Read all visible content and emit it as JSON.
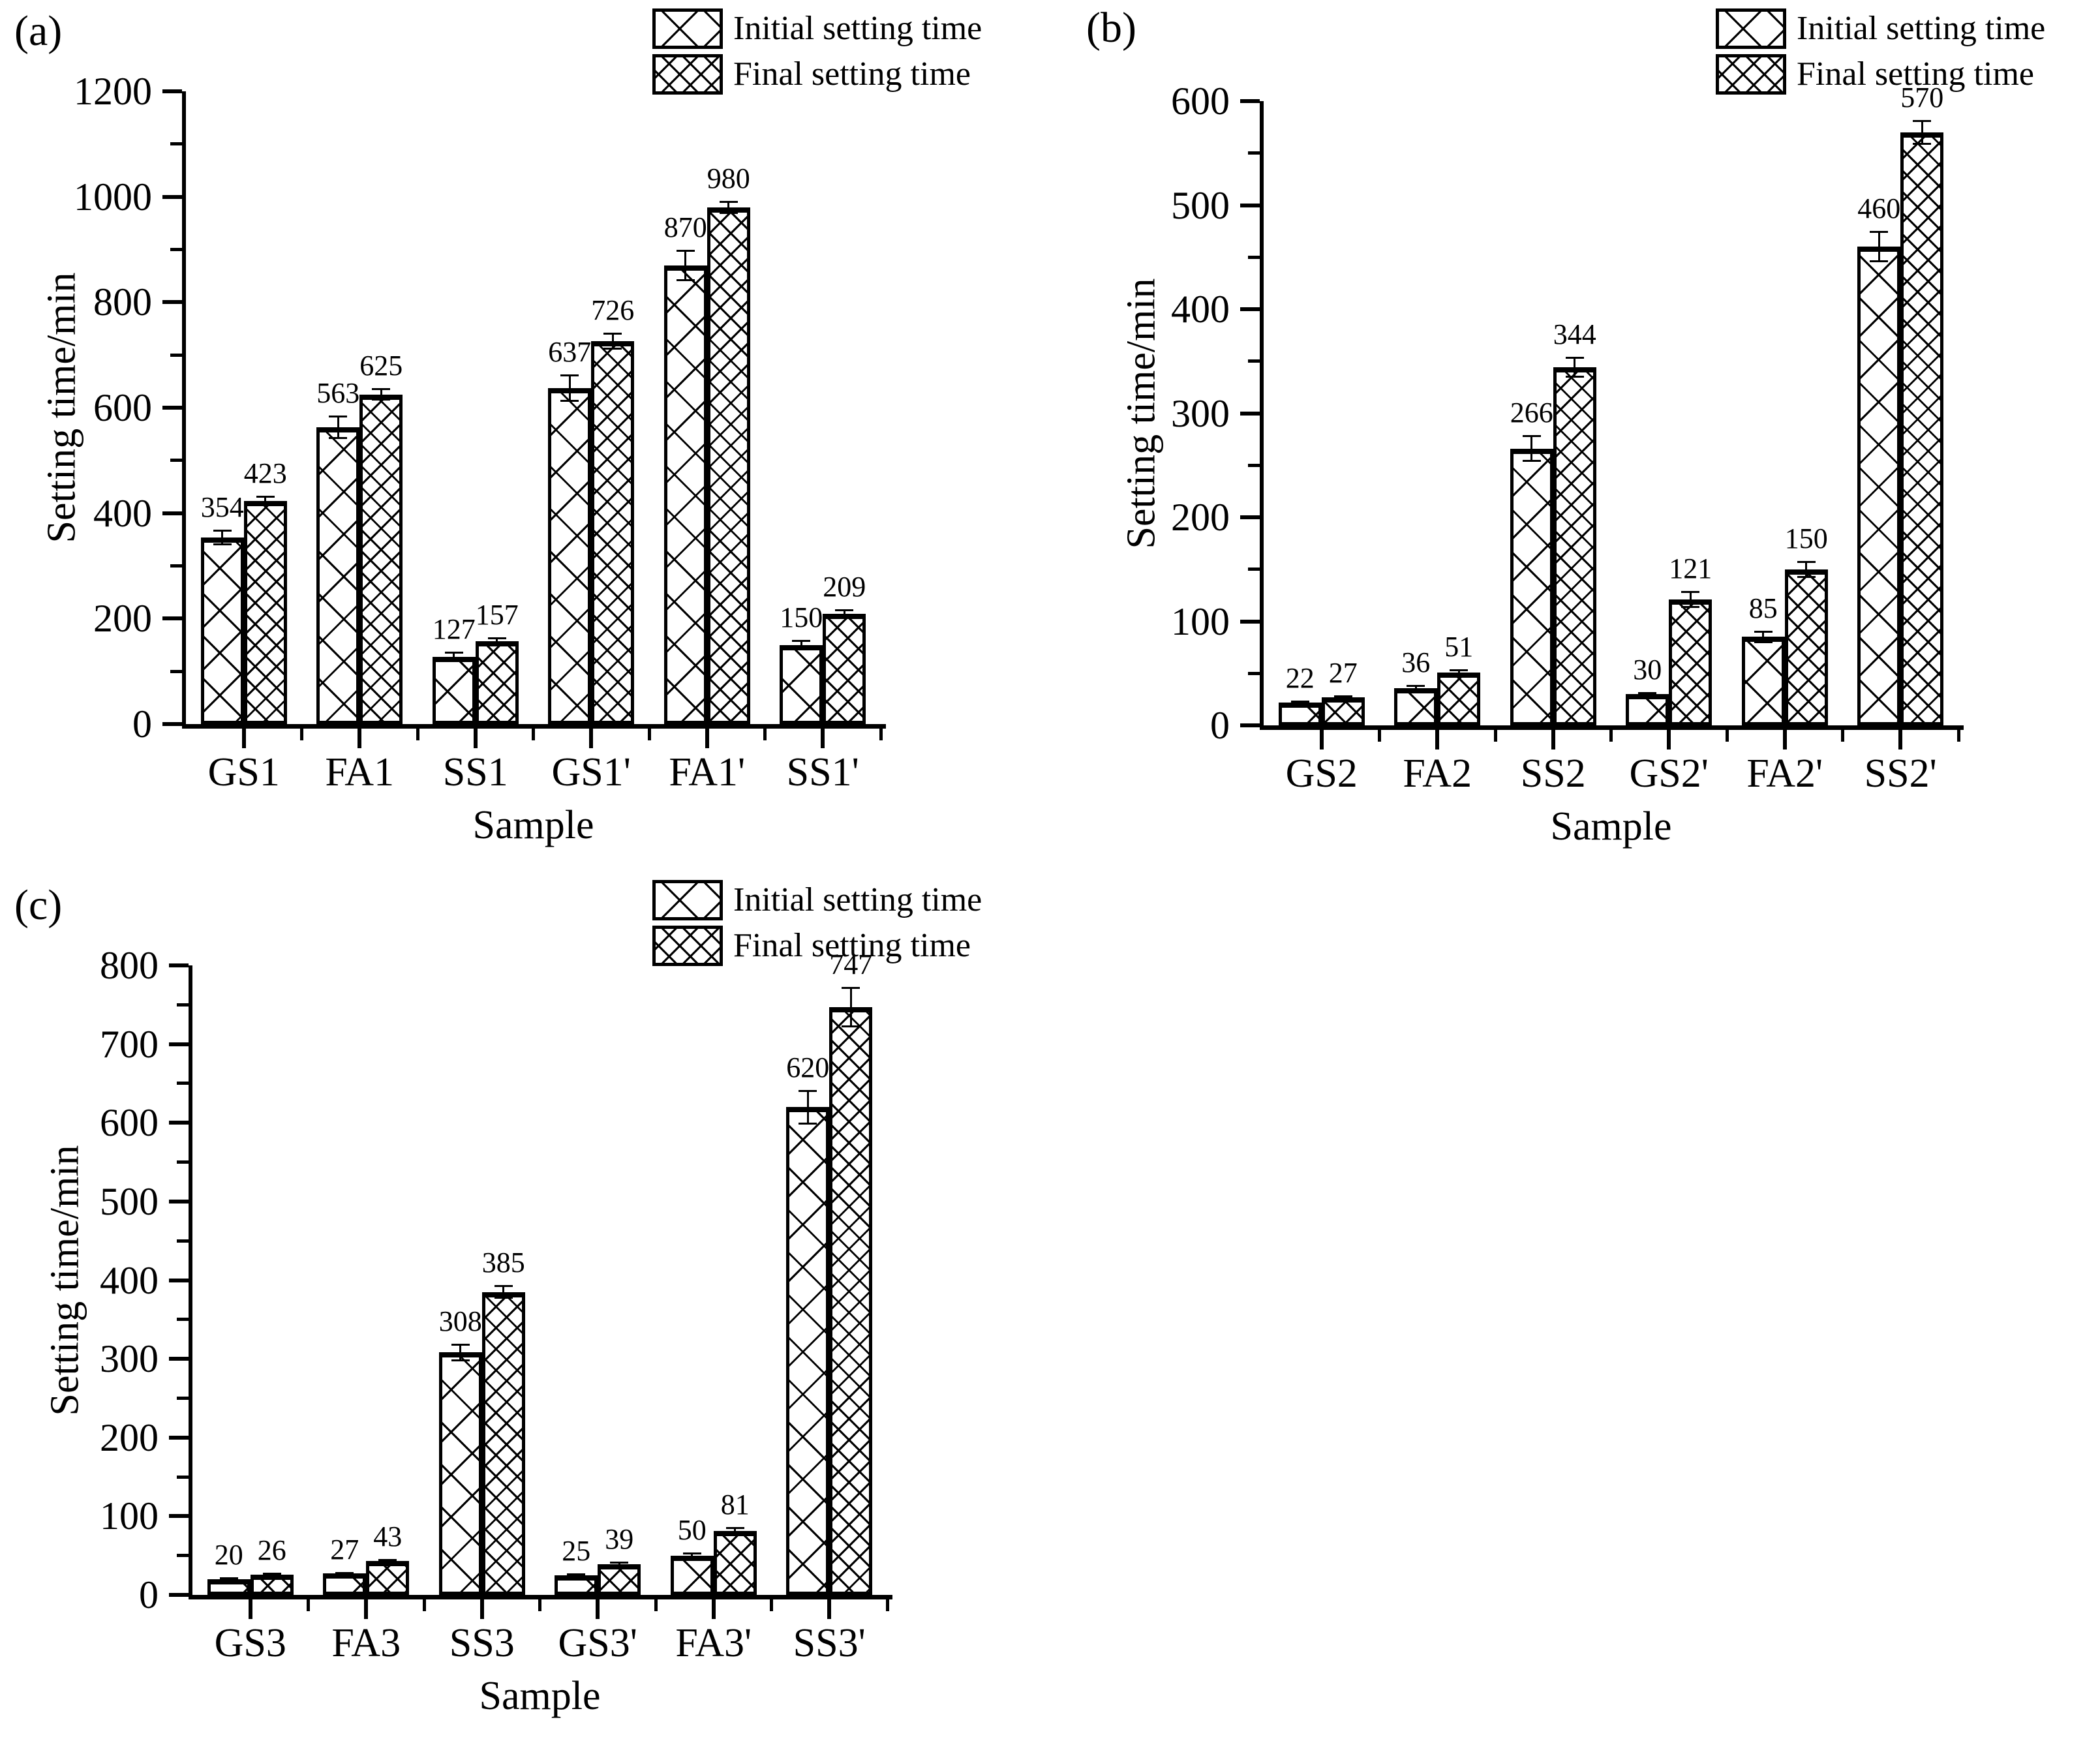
{
  "figure": {
    "background": "#ffffff",
    "ink_color": "#000000",
    "legend": {
      "initial_label": "Initial setting time",
      "final_label": "Final setting time"
    }
  },
  "chart_data": [
    {
      "tag": "(a)",
      "type": "bar",
      "xlabel": "Sample",
      "ylabel": "Setting time/min",
      "categories": [
        "GS1",
        "FA1",
        "SS1",
        "GS1'",
        "FA1'",
        "SS1'"
      ],
      "series": [
        {
          "name": "Initial setting time",
          "pattern": "coarse-crosshatch",
          "values": [
            354,
            563,
            127,
            637,
            870,
            150
          ],
          "errors": [
            15,
            22,
            10,
            26,
            30,
            9
          ]
        },
        {
          "name": "Final setting time",
          "pattern": "fine-crosshatch",
          "values": [
            423,
            625,
            157,
            726,
            980,
            209
          ],
          "errors": [
            10,
            12,
            7,
            16,
            12,
            9
          ]
        }
      ],
      "ylim": [
        0,
        1200
      ],
      "yticks": [
        0,
        200,
        400,
        600,
        800,
        1000,
        1200
      ],
      "minor_step": 100,
      "grid": false,
      "legend_position": "top-right"
    },
    {
      "tag": "(b)",
      "type": "bar",
      "xlabel": "Sample",
      "ylabel": "Setting time/min",
      "categories": [
        "GS2",
        "FA2",
        "SS2",
        "GS2'",
        "FA2'",
        "SS2'"
      ],
      "series": [
        {
          "name": "Initial setting time",
          "pattern": "coarse-crosshatch",
          "values": [
            22,
            36,
            266,
            30,
            85,
            460
          ],
          "errors": [
            2,
            3,
            13,
            2,
            6,
            15
          ]
        },
        {
          "name": "Final setting time",
          "pattern": "fine-crosshatch",
          "values": [
            27,
            51,
            344,
            121,
            150,
            570
          ],
          "errors": [
            2,
            3,
            10,
            8,
            8,
            12
          ]
        }
      ],
      "ylim": [
        0,
        600
      ],
      "yticks": [
        0,
        100,
        200,
        300,
        400,
        500,
        600
      ],
      "minor_step": 50,
      "grid": false,
      "legend_position": "top-right"
    },
    {
      "tag": "(c)",
      "type": "bar",
      "xlabel": "Sample",
      "ylabel": "Setting time/min",
      "categories": [
        "GS3",
        "FA3",
        "SS3",
        "GS3'",
        "FA3'",
        "SS3'"
      ],
      "series": [
        {
          "name": "Initial setting time",
          "pattern": "coarse-crosshatch",
          "values": [
            20,
            27,
            308,
            25,
            50,
            620
          ],
          "errors": [
            2,
            2,
            11,
            2,
            4,
            22
          ]
        },
        {
          "name": "Final setting time",
          "pattern": "fine-crosshatch",
          "values": [
            26,
            43,
            385,
            39,
            81,
            747
          ],
          "errors": [
            2,
            3,
            9,
            3,
            5,
            26
          ]
        }
      ],
      "ylim": [
        0,
        800
      ],
      "yticks": [
        0,
        100,
        200,
        300,
        400,
        500,
        600,
        700,
        800
      ],
      "minor_step": 50,
      "grid": false,
      "legend_position": "top-right"
    }
  ]
}
